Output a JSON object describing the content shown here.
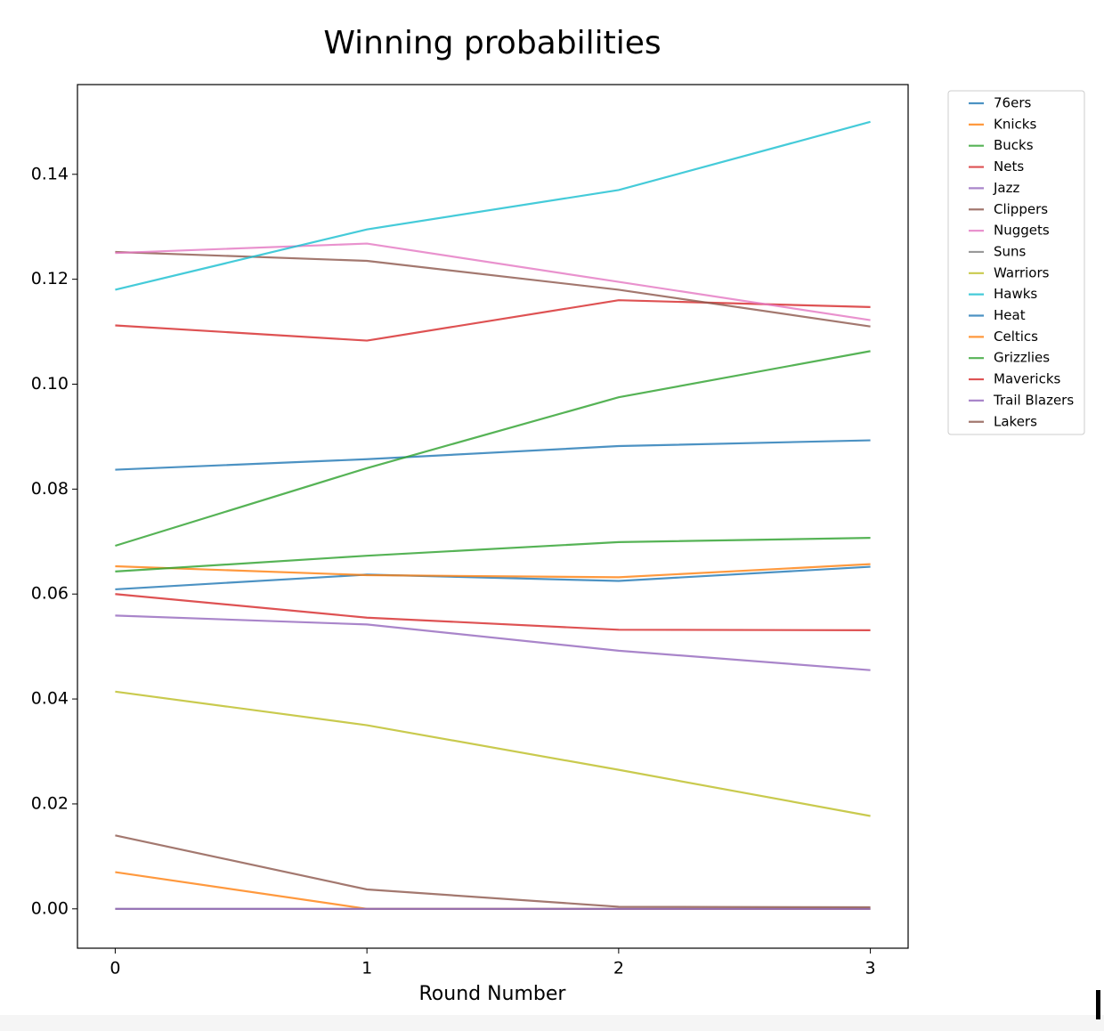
{
  "chart_data": {
    "type": "line",
    "title": "Winning probabilities",
    "x_label": "Round Number",
    "x": [
      0,
      1,
      2,
      3
    ],
    "xlim": [
      -0.15,
      3.15
    ],
    "xticks": [
      0,
      1,
      2,
      3
    ],
    "ylim": [
      -0.0075,
      0.1571
    ],
    "yticks": [
      {
        "value": 0,
        "label": "0.00"
      },
      0.02,
      0.04,
      0.06,
      0.08,
      {
        "value": 0.1,
        "label": "0.10"
      },
      0.12,
      0.14
    ],
    "legend": "outside-upper-right",
    "series": [
      {
        "name": "76ers",
        "color": "#1f77b4",
        "values": [
          0.0837,
          0.0857,
          0.0882,
          0.0893
        ]
      },
      {
        "name": "Knicks",
        "color": "#ff7f0e",
        "values": [
          0.007,
          0,
          0,
          0
        ]
      },
      {
        "name": "Bucks",
        "color": "#2ca02c",
        "values": [
          0.0692,
          0.084,
          0.0975,
          0.1063
        ]
      },
      {
        "name": "Nets",
        "color": "#d62728",
        "values": [
          0.1112,
          0.1083,
          0.116,
          0.1147
        ]
      },
      {
        "name": "Jazz",
        "color": "#9467bd",
        "values": [
          0.0559,
          0.0542,
          0.0492,
          0.0455
        ]
      },
      {
        "name": "Clippers",
        "color": "#8c564b",
        "values": [
          0.1252,
          0.1235,
          0.118,
          0.111
        ]
      },
      {
        "name": "Nuggets",
        "color": "#e377c2",
        "values": [
          0.125,
          0.1268,
          0.1195,
          0.1122
        ]
      },
      {
        "name": "Suns",
        "color": "#7f7f7f",
        "values": [
          0,
          0,
          0,
          0
        ]
      },
      {
        "name": "Warriors",
        "color": "#bcbd22",
        "values": [
          0.0414,
          0.035,
          0.0265,
          0.0177
        ]
      },
      {
        "name": "Hawks",
        "color": "#17becf",
        "values": [
          0.118,
          0.1295,
          0.137,
          0.15
        ]
      },
      {
        "name": "Heat",
        "color": "#1f77b4",
        "values": [
          0.0609,
          0.0637,
          0.0625,
          0.0652
        ]
      },
      {
        "name": "Celtics",
        "color": "#ff7f0e",
        "values": [
          0.0653,
          0.0636,
          0.0632,
          0.0657
        ]
      },
      {
        "name": "Grizzlies",
        "color": "#2ca02c",
        "values": [
          0.0643,
          0.0673,
          0.0699,
          0.0707
        ]
      },
      {
        "name": "Mavericks",
        "color": "#d62728",
        "values": [
          0.06,
          0.0555,
          0.0532,
          0.0531
        ]
      },
      {
        "name": "Trail Blazers",
        "color": "#9467bd",
        "values": [
          0,
          0,
          0,
          0
        ]
      },
      {
        "name": "Lakers",
        "color": "#8c564b",
        "values": [
          0.014,
          0.0037,
          0.0004,
          0.0003
        ]
      }
    ]
  }
}
